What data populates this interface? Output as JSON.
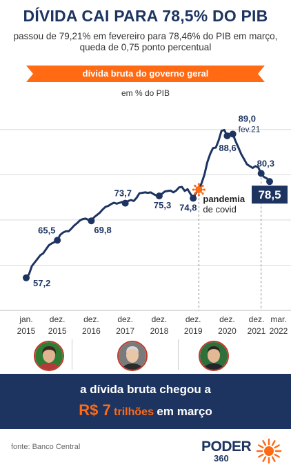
{
  "header": {
    "title": "DÍVIDA CAI PARA 78,5% DO PIB",
    "subtitle_line1": "passou de 79,21% em fevereiro para 78,46% do PIB em março,",
    "subtitle_line2": "queda de 0,75 ponto percentual",
    "ribbon": "dívida bruta do governo geral",
    "unit": "em % do PIB"
  },
  "colors": {
    "navy": "#1d3461",
    "orange": "#ff6a13",
    "grid": "#d9d9d9"
  },
  "chart_data": {
    "type": "line",
    "title": "dívida bruta do governo geral",
    "ylabel": "em % do PIB",
    "ylim": [
      50,
      95
    ],
    "grid": true,
    "x_ticks": [
      {
        "line1": "jan.",
        "line2": "2015",
        "t": 0
      },
      {
        "line1": "dez.",
        "line2": "2015",
        "t": 11
      },
      {
        "line1": "dez.",
        "line2": "2016",
        "t": 23
      },
      {
        "line1": "dez.",
        "line2": "2017",
        "t": 35
      },
      {
        "line1": "dez.",
        "line2": "2018",
        "t": 47
      },
      {
        "line1": "dez.",
        "line2": "2019",
        "t": 59
      },
      {
        "line1": "dez.",
        "line2": "2020",
        "t": 71
      },
      {
        "line1": "dez.",
        "line2": "2021",
        "t": 83
      },
      {
        "line1": "mar.",
        "line2": "2022",
        "t": 86
      }
    ],
    "series": [
      {
        "values": [
          [
            0,
            57.2
          ],
          [
            1,
            58.0
          ],
          [
            2,
            59.8
          ],
          [
            3,
            60.6
          ],
          [
            4,
            61.4
          ],
          [
            5,
            62.2
          ],
          [
            6,
            62.6
          ],
          [
            7,
            63.5
          ],
          [
            8,
            64.4
          ],
          [
            9,
            64.8
          ],
          [
            10,
            65.1
          ],
          [
            11,
            65.5
          ],
          [
            12,
            66.7
          ],
          [
            13,
            67.2
          ],
          [
            14,
            67.5
          ],
          [
            15,
            67.5
          ],
          [
            16,
            68.1
          ],
          [
            17,
            68.8
          ],
          [
            18,
            69.3
          ],
          [
            19,
            69.9
          ],
          [
            20,
            70.2
          ],
          [
            21,
            70.3
          ],
          [
            22,
            70.0
          ],
          [
            23,
            69.8
          ],
          [
            24,
            70.6
          ],
          [
            25,
            71.1
          ],
          [
            26,
            71.6
          ],
          [
            27,
            72.3
          ],
          [
            28,
            72.9
          ],
          [
            29,
            73.1
          ],
          [
            30,
            73.5
          ],
          [
            31,
            73.8
          ],
          [
            32,
            73.6
          ],
          [
            33,
            73.8
          ],
          [
            34,
            74.0
          ],
          [
            35,
            73.7
          ],
          [
            36,
            74.2
          ],
          [
            37,
            74.4
          ],
          [
            38,
            74.2
          ],
          [
            39,
            74.9
          ],
          [
            40,
            75.9
          ],
          [
            41,
            76.0
          ],
          [
            42,
            76.1
          ],
          [
            43,
            76.0
          ],
          [
            44,
            76.1
          ],
          [
            45,
            75.7
          ],
          [
            46,
            75.4
          ],
          [
            47,
            75.3
          ],
          [
            48,
            75.8
          ],
          [
            49,
            76.3
          ],
          [
            50,
            76.4
          ],
          [
            51,
            76.5
          ],
          [
            52,
            76.1
          ],
          [
            53,
            76.5
          ],
          [
            54,
            77.2
          ],
          [
            55,
            77.3
          ],
          [
            56,
            76.4
          ],
          [
            57,
            76.8
          ],
          [
            58,
            75.8
          ],
          [
            59,
            74.8
          ],
          [
            60,
            76.0
          ],
          [
            61,
            76.7
          ],
          [
            62,
            78.2
          ],
          [
            63,
            80.1
          ],
          [
            64,
            82.8
          ],
          [
            65,
            84.6
          ],
          [
            66,
            85.9
          ],
          [
            67,
            86.0
          ],
          [
            68,
            87.6
          ],
          [
            69,
            89.7
          ],
          [
            70,
            89.9
          ],
          [
            71,
            88.6
          ],
          [
            72,
            89.0
          ],
          [
            73,
            89.0
          ],
          [
            74,
            87.4
          ],
          [
            75,
            86.0
          ],
          [
            76,
            84.5
          ],
          [
            77,
            83.4
          ],
          [
            78,
            82.3
          ],
          [
            79,
            81.9
          ],
          [
            80,
            81.5
          ],
          [
            81,
            81.9
          ],
          [
            82,
            81.6
          ],
          [
            83,
            80.3
          ],
          [
            84,
            79.5
          ],
          [
            85,
            79.2
          ],
          [
            86,
            78.5
          ]
        ]
      }
    ],
    "labeled_points": [
      {
        "t": 0,
        "value": 57.2,
        "label": "57,2"
      },
      {
        "t": 11,
        "value": 65.5,
        "label": "65,5"
      },
      {
        "t": 23,
        "value": 69.8,
        "label": "69,8"
      },
      {
        "t": 35,
        "value": 73.7,
        "label": "73,7"
      },
      {
        "t": 47,
        "value": 75.3,
        "label": "75,3"
      },
      {
        "t": 59,
        "value": 74.8,
        "label": "74,8"
      },
      {
        "t": 71,
        "value": 88.6,
        "label": "88,6"
      },
      {
        "t": 73,
        "value": 89.0,
        "label": "89,0",
        "sublabel": "fev.21"
      },
      {
        "t": 83,
        "value": 80.3,
        "label": "80,3"
      },
      {
        "t": 86,
        "value": 78.5,
        "label": "78,5",
        "highlight": true
      }
    ],
    "annotations": [
      {
        "t": 61,
        "line1": "pandemia",
        "line2": "de covid",
        "icon": "virus-icon"
      }
    ],
    "reference_lines_t": [
      61,
      83
    ]
  },
  "presidents": [
    {
      "icon": "president-photo-icon",
      "skin": "#e0b490",
      "hair": "#3a2a22",
      "bg": "#2e7d32"
    },
    {
      "icon": "president-photo-icon",
      "skin": "#e8c6a8",
      "hair": "#d8d8d8",
      "bg": "#7a7a7a"
    },
    {
      "icon": "president-photo-icon",
      "skin": "#e3b894",
      "hair": "#2a2320",
      "bg": "#2f6f3a"
    }
  ],
  "banner": {
    "line1": "a dívida bruta chegou a",
    "amount": "R$ 7",
    "unit": "trilhões",
    "rest": "em março"
  },
  "footer": {
    "source": "fonte: Banco Central",
    "logo_name": "PODER",
    "logo_number": "360"
  }
}
